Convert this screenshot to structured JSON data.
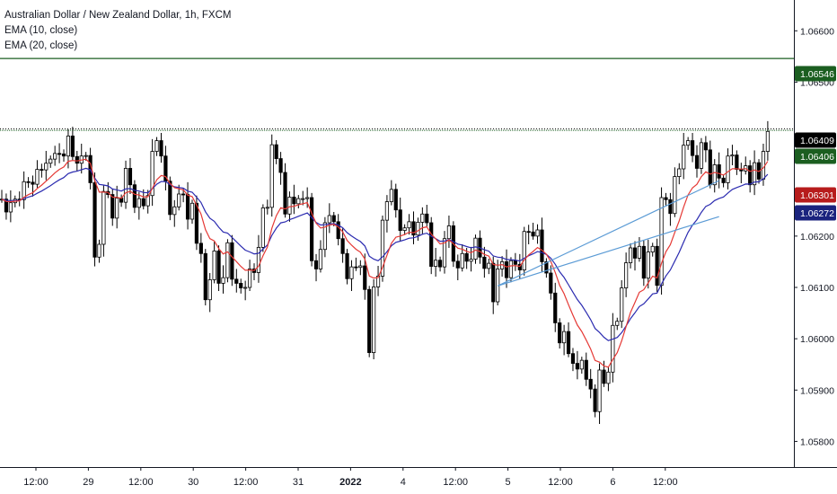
{
  "legend": {
    "symbol": "Australian Dollar / New Zealand Dollar, 1h, FXCM",
    "ema10": "EMA (10, close)",
    "ema20": "EMA (20, close)"
  },
  "colors": {
    "up": "#ffffff",
    "down": "#000000",
    "wick": "#000000",
    "ema10": "#e53935",
    "ema20": "#2b2bb0",
    "resistance": "#1b5e20",
    "trendline": "#5b9bd5",
    "axis": "#131722",
    "tag_price": "#000000",
    "tag_green": "#1b5e20",
    "tag_red": "#b71c1c",
    "tag_blue": "#1a237e"
  },
  "chart_data": {
    "type": "candlestick",
    "title": "Australian Dollar / New Zealand Dollar, 1h, FXCM",
    "ylim": [
      1.0575,
      1.0666
    ],
    "y_ticks": [
      "1.06600",
      "1.06500",
      "1.06200",
      "1.06100",
      "1.06000",
      "1.05900",
      "1.05800"
    ],
    "y_tick_values": [
      1.066,
      1.065,
      1.062,
      1.061,
      1.06,
      1.059,
      1.058
    ],
    "x_ticks": [
      "12:00",
      "29",
      "12:00",
      "30",
      "12:00",
      "31",
      "2022",
      "4",
      "12:00",
      "5",
      "12:00",
      "6",
      "12:00"
    ],
    "x_ticks_bold": [
      false,
      false,
      false,
      false,
      false,
      false,
      true,
      false,
      false,
      false,
      false,
      false,
      false
    ],
    "price_tags": [
      {
        "label": "1.06546",
        "kind": "green"
      },
      {
        "label": "1.06409",
        "kind": "price"
      },
      {
        "label": "1.06406",
        "kind": "green"
      },
      {
        "label": "1.06301",
        "kind": "red"
      },
      {
        "label": "1.06272",
        "kind": "blue"
      }
    ],
    "horizontal_lines": [
      1.06546,
      1.06409,
      1.06406
    ],
    "trendlines": [
      {
        "from": [
          112,
          1.06103
        ],
        "to": [
          162,
          1.06308
        ]
      },
      {
        "from": [
          112,
          1.06103
        ],
        "to": [
          162,
          1.06238
        ]
      }
    ],
    "closes": [
      1.06272,
      1.06247,
      1.06265,
      1.06272,
      1.06271,
      1.06306,
      1.06305,
      1.06301,
      1.0633,
      1.06329,
      1.06342,
      1.0635,
      1.06361,
      1.0636,
      1.06356,
      1.06395,
      1.06355,
      1.06342,
      1.06356,
      1.06357,
      1.06304,
      1.06159,
      1.06184,
      1.06287,
      1.06281,
      1.06235,
      1.06274,
      1.06266,
      1.06332,
      1.063,
      1.06256,
      1.06273,
      1.06259,
      1.06279,
      1.06365,
      1.06386,
      1.06356,
      1.06307,
      1.06242,
      1.06257,
      1.06282,
      1.06281,
      1.06233,
      1.06264,
      1.06186,
      1.06166,
      1.06076,
      1.06115,
      1.06171,
      1.06108,
      1.06119,
      1.06187,
      1.06116,
      1.06108,
      1.06099,
      1.061,
      1.06136,
      1.06129,
      1.06178,
      1.06255,
      1.06256,
      1.06378,
      1.06351,
      1.06324,
      1.06243,
      1.06276,
      1.06263,
      1.06273,
      1.06273,
      1.06275,
      1.06152,
      1.06136,
      1.06174,
      1.06226,
      1.0624,
      1.06228,
      1.06195,
      1.06166,
      1.06117,
      1.0614,
      1.06139,
      1.06142,
      1.06096,
      1.05973,
      1.06101,
      1.06122,
      1.06231,
      1.06267,
      1.06291,
      1.06251,
      1.06211,
      1.06216,
      1.06228,
      1.06202,
      1.06227,
      1.06243,
      1.06226,
      1.06141,
      1.06153,
      1.0614,
      1.06195,
      1.0622,
      1.06151,
      1.06138,
      1.06166,
      1.06151,
      1.06155,
      1.06196,
      1.06159,
      1.06137,
      1.06147,
      1.06072,
      1.06136,
      1.0615,
      1.06119,
      1.06152,
      1.06145,
      1.06134,
      1.06209,
      1.06208,
      1.062,
      1.06212,
      1.0615,
      1.06128,
      1.06089,
      1.06031,
      1.05992,
      1.06014,
      1.05971,
      1.05952,
      1.05941,
      1.05958,
      1.05921,
      1.05902,
      1.05858,
      1.05939,
      1.05913,
      1.05935,
      1.06026,
      1.06034,
      1.06099,
      1.06148,
      1.06177,
      1.06157,
      1.0618,
      1.06118,
      1.06169,
      1.0618,
      1.06104,
      1.06275,
      1.06271,
      1.06244,
      1.06316,
      1.06331,
      1.06377,
      1.06386,
      1.06357,
      1.06332,
      1.06382,
      1.06368,
      1.063,
      1.06339,
      1.06313,
      1.06304,
      1.06356,
      1.06358,
      1.0633,
      1.06327,
      1.06337,
      1.063,
      1.06343,
      1.06311,
      1.06365,
      1.06404
    ]
  }
}
